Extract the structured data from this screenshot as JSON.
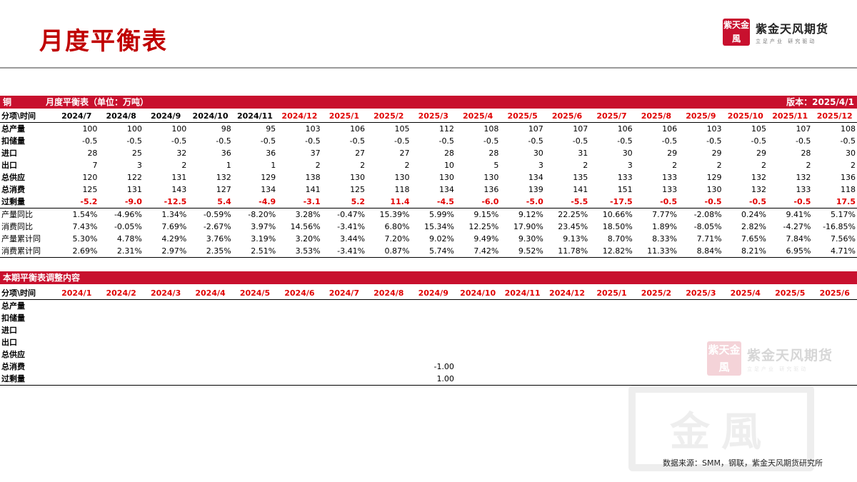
{
  "page": {
    "title": "月度平衡表"
  },
  "logo": {
    "seal_chars": [
      "紫",
      "天",
      "金",
      "風"
    ],
    "name": "紫金天风期货",
    "tagline": "立足产业 研究驱动"
  },
  "balance": {
    "commodity": "铜",
    "table_title": "月度平衡表（单位：万吨）",
    "version": "版本：2025/4/1",
    "header_label": "分项\\时间",
    "months": [
      "2024/7",
      "2024/8",
      "2024/9",
      "2024/10",
      "2024/11",
      "2024/12",
      "2025/1",
      "2025/2",
      "2025/3",
      "2025/4",
      "2025/5",
      "2025/6",
      "2025/7",
      "2025/8",
      "2025/9",
      "2025/10",
      "2025/11",
      "2025/12"
    ],
    "header_colors": [
      "#000000",
      "#000000",
      "#000000",
      "#000000",
      "#000000",
      "#e00000",
      "#e00000",
      "#e00000",
      "#e00000",
      "#e00000",
      "#e00000",
      "#e00000",
      "#e00000",
      "#e00000",
      "#e00000",
      "#e00000",
      "#e00000",
      "#e00000"
    ],
    "rows": [
      {
        "label": "总产量",
        "values": [
          "100",
          "100",
          "100",
          "98",
          "95",
          "103",
          "106",
          "105",
          "112",
          "108",
          "107",
          "107",
          "106",
          "106",
          "103",
          "105",
          "107",
          "108"
        ]
      },
      {
        "label": "扣储量",
        "values": [
          "-0.5",
          "-0.5",
          "-0.5",
          "-0.5",
          "-0.5",
          "-0.5",
          "-0.5",
          "-0.5",
          "-0.5",
          "-0.5",
          "-0.5",
          "-0.5",
          "-0.5",
          "-0.5",
          "-0.5",
          "-0.5",
          "-0.5",
          "-0.5"
        ]
      },
      {
        "label": "进口",
        "values": [
          "28",
          "25",
          "32",
          "36",
          "36",
          "37",
          "27",
          "27",
          "28",
          "28",
          "30",
          "31",
          "30",
          "29",
          "29",
          "29",
          "28",
          "30"
        ]
      },
      {
        "label": "出口",
        "values": [
          "7",
          "3",
          "2",
          "1",
          "1",
          "2",
          "2",
          "2",
          "10",
          "5",
          "3",
          "2",
          "3",
          "2",
          "2",
          "2",
          "2",
          "2"
        ]
      },
      {
        "label": "总供应",
        "values": [
          "120",
          "122",
          "131",
          "132",
          "129",
          "138",
          "130",
          "130",
          "130",
          "130",
          "134",
          "135",
          "133",
          "133",
          "129",
          "132",
          "132",
          "136"
        ]
      },
      {
        "label": "总消费",
        "values": [
          "125",
          "131",
          "143",
          "127",
          "134",
          "141",
          "125",
          "118",
          "134",
          "136",
          "139",
          "141",
          "151",
          "133",
          "130",
          "132",
          "133",
          "118"
        ]
      },
      {
        "label": "过剩量",
        "values": [
          "-5.2",
          "-9.0",
          "-12.5",
          "5.4",
          "-4.9",
          "-3.1",
          "5.2",
          "11.4",
          "-4.5",
          "-6.0",
          "-5.0",
          "-5.5",
          "-17.5",
          "-0.5",
          "-0.5",
          "-0.5",
          "-0.5",
          "17.5"
        ]
      },
      {
        "label": "产量同比",
        "values": [
          "1.54%",
          "-4.96%",
          "1.34%",
          "-0.59%",
          "-8.20%",
          "3.28%",
          "-0.47%",
          "15.39%",
          "5.99%",
          "9.15%",
          "9.12%",
          "22.25%",
          "10.66%",
          "7.77%",
          "-2.08%",
          "0.24%",
          "9.41%",
          "5.17%"
        ]
      },
      {
        "label": "消费同比",
        "values": [
          "7.43%",
          "-0.05%",
          "7.69%",
          "-2.67%",
          "3.97%",
          "14.56%",
          "-3.41%",
          "6.80%",
          "15.34%",
          "12.25%",
          "17.90%",
          "23.45%",
          "18.50%",
          "1.89%",
          "-8.05%",
          "2.82%",
          "-4.27%",
          "-16.85%"
        ]
      },
      {
        "label": "产量累计同",
        "values": [
          "5.30%",
          "4.78%",
          "4.29%",
          "3.76%",
          "3.19%",
          "3.20%",
          "3.44%",
          "7.20%",
          "9.02%",
          "9.49%",
          "9.30%",
          "9.13%",
          "8.70%",
          "8.33%",
          "7.71%",
          "7.65%",
          "7.84%",
          "7.56%"
        ]
      },
      {
        "label": "消费累计同",
        "values": [
          "2.69%",
          "2.31%",
          "2.97%",
          "2.35%",
          "2.51%",
          "3.53%",
          "-3.41%",
          "0.87%",
          "5.74%",
          "7.42%",
          "9.52%",
          "11.78%",
          "12.82%",
          "11.33%",
          "8.84%",
          "8.21%",
          "6.95%",
          "4.71%"
        ]
      }
    ]
  },
  "adjust": {
    "title": "本期平衡表调整内容",
    "header_label": "分项\\时间",
    "months": [
      "2024/1",
      "2024/2",
      "2024/3",
      "2024/4",
      "2024/5",
      "2024/6",
      "2024/7",
      "2024/8",
      "2024/9",
      "2024/10",
      "2024/11",
      "2024/12",
      "2025/1",
      "2025/2",
      "2025/3",
      "2025/4",
      "2025/5",
      "2025/6"
    ],
    "rows": [
      {
        "label": "总产量",
        "values": [
          "",
          "",
          "",
          "",
          "",
          "",
          "",
          "",
          "",
          "",
          "",
          "",
          "",
          "",
          "",
          "",
          "",
          ""
        ]
      },
      {
        "label": "扣储量",
        "values": [
          "",
          "",
          "",
          "",
          "",
          "",
          "",
          "",
          "",
          "",
          "",
          "",
          "",
          "",
          "",
          "",
          "",
          ""
        ]
      },
      {
        "label": "进口",
        "values": [
          "",
          "",
          "",
          "",
          "",
          "",
          "",
          "",
          "",
          "",
          "",
          "",
          "",
          "",
          "",
          "",
          "",
          ""
        ]
      },
      {
        "label": "出口",
        "values": [
          "",
          "",
          "",
          "",
          "",
          "",
          "",
          "",
          "",
          "",
          "",
          "",
          "",
          "",
          "",
          "",
          "",
          ""
        ]
      },
      {
        "label": "总供应",
        "values": [
          "",
          "",
          "",
          "",
          "",
          "",
          "",
          "",
          "",
          "",
          "",
          "",
          "",
          "",
          "",
          "",
          "",
          ""
        ]
      },
      {
        "label": "总消费",
        "values": [
          "",
          "",
          "",
          "",
          "",
          "",
          "",
          "",
          "-1.00",
          "",
          "",
          "",
          "",
          "",
          "",
          "",
          "",
          ""
        ]
      },
      {
        "label": "过剩量",
        "values": [
          "",
          "",
          "",
          "",
          "",
          "",
          "",
          "",
          "1.00",
          "",
          "",
          "",
          "",
          "",
          "",
          "",
          "",
          ""
        ]
      }
    ]
  },
  "watermark": {
    "big_chars": "金風"
  },
  "footer": {
    "source": "数据来源：SMM，钢联，紫金天风期货研究所"
  }
}
